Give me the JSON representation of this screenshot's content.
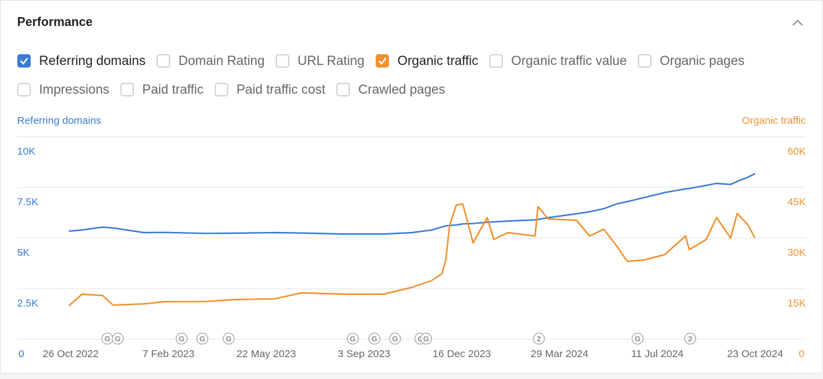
{
  "header": {
    "title": "Performance"
  },
  "metrics": [
    {
      "label": "Referring domains",
      "checked": true,
      "color": "#3a7bd5"
    },
    {
      "label": "Domain Rating",
      "checked": false
    },
    {
      "label": "URL Rating",
      "checked": false
    },
    {
      "label": "Organic traffic",
      "checked": true,
      "color": "#f0912e"
    },
    {
      "label": "Organic traffic value",
      "checked": false
    },
    {
      "label": "Organic pages",
      "checked": false
    },
    {
      "label": "Impressions",
      "checked": false
    },
    {
      "label": "Paid traffic",
      "checked": false
    },
    {
      "label": "Paid traffic cost",
      "checked": false
    },
    {
      "label": "Crawled pages",
      "checked": false
    }
  ],
  "chart_data": {
    "type": "line",
    "x": [
      "2022-10-24",
      "2022-11-07",
      "2022-11-29",
      "2022-12-10",
      "2023-01-12",
      "2023-02-03",
      "2023-03-19",
      "2023-04-17",
      "2023-05-31",
      "2023-06-29",
      "2023-08-12",
      "2023-09-24",
      "2023-10-24",
      "2023-11-14",
      "2023-11-25",
      "2023-11-29",
      "2023-12-03",
      "2023-12-10",
      "2023-12-17",
      "2023-12-28",
      "2024-01-12",
      "2024-01-19",
      "2024-02-03",
      "2024-03-03",
      "2024-03-06",
      "2024-03-17",
      "2024-04-16",
      "2024-04-30",
      "2024-05-15",
      "2024-05-29",
      "2024-06-09",
      "2024-06-27",
      "2024-07-19",
      "2024-08-10",
      "2024-08-14",
      "2024-09-01",
      "2024-09-12",
      "2024-09-27",
      "2024-10-04",
      "2024-10-15",
      "2024-10-23"
    ],
    "series": [
      {
        "name": "Referring domains",
        "color": "#3a7bd5",
        "axis": "y",
        "values": [
          5340,
          5400,
          5540,
          5500,
          5270,
          5280,
          5230,
          5240,
          5270,
          5250,
          5200,
          5200,
          5270,
          5400,
          5550,
          5600,
          5620,
          5650,
          5700,
          5720,
          5780,
          5800,
          5840,
          5900,
          5920,
          6010,
          6200,
          6300,
          6450,
          6690,
          6800,
          7000,
          7250,
          7430,
          7450,
          7600,
          7700,
          7650,
          7800,
          8000,
          8180
        ]
      },
      {
        "name": "Organic traffic",
        "color": "#f0912e",
        "axis": "y2",
        "values": [
          9930,
          13380,
          12970,
          10140,
          10500,
          11150,
          11200,
          11760,
          12000,
          13780,
          13380,
          13400,
          15400,
          17430,
          19460,
          23510,
          33650,
          39730,
          40130,
          28580,
          36080,
          29590,
          31620,
          30610,
          39320,
          35670,
          35270,
          30600,
          32640,
          27570,
          23110,
          23510,
          25130,
          30610,
          26550,
          29590,
          36080,
          29990,
          37300,
          34050,
          29990
        ]
      }
    ],
    "xlim": [
      "2022-08-30",
      "2024-12-16"
    ],
    "xticks": [
      {
        "value": "2022-10-26",
        "label": "26 Oct 2022"
      },
      {
        "value": "2023-02-07",
        "label": "7 Feb 2023"
      },
      {
        "value": "2023-05-22",
        "label": "22 May 2023"
      },
      {
        "value": "2023-09-03",
        "label": "3 Sep 2023"
      },
      {
        "value": "2023-12-16",
        "label": "16 Dec 2023"
      },
      {
        "value": "2024-03-29",
        "label": "29 Mar 2024"
      },
      {
        "value": "2024-07-11",
        "label": "11 Jul 2024"
      },
      {
        "value": "2024-10-23",
        "label": "23 Oct 2024"
      }
    ],
    "ylim": [
      0,
      10000
    ],
    "yticks": [
      0,
      {
        "value": 2500,
        "label": "2.5K"
      },
      {
        "value": 5000,
        "label": "5K"
      },
      {
        "value": 7500,
        "label": "7.5K"
      },
      {
        "value": 10000,
        "label": "10K"
      }
    ],
    "y2lim": [
      0,
      60000
    ],
    "y2ticks": [
      0,
      {
        "value": 15000,
        "label": "15K"
      },
      {
        "value": 30000,
        "label": "30K"
      },
      {
        "value": 45000,
        "label": "45K"
      },
      {
        "value": 60000,
        "label": "60K"
      }
    ],
    "grid": true,
    "annotations": [
      {
        "x": "2022-12-04",
        "label": "G"
      },
      {
        "x": "2022-12-15",
        "label": "G"
      },
      {
        "x": "2023-02-21",
        "label": "G"
      },
      {
        "x": "2023-03-15",
        "label": "G"
      },
      {
        "x": "2023-04-12",
        "label": "G"
      },
      {
        "x": "2023-08-22",
        "label": "G"
      },
      {
        "x": "2023-09-14",
        "label": "G"
      },
      {
        "x": "2023-10-06",
        "label": "G"
      },
      {
        "x": "2023-11-02",
        "label": "G"
      },
      {
        "x": "2023-11-08",
        "label": "G"
      },
      {
        "x": "2024-03-07",
        "label": "2"
      },
      {
        "x": "2024-06-20",
        "label": "G"
      },
      {
        "x": "2024-08-15",
        "label": "2"
      }
    ]
  }
}
